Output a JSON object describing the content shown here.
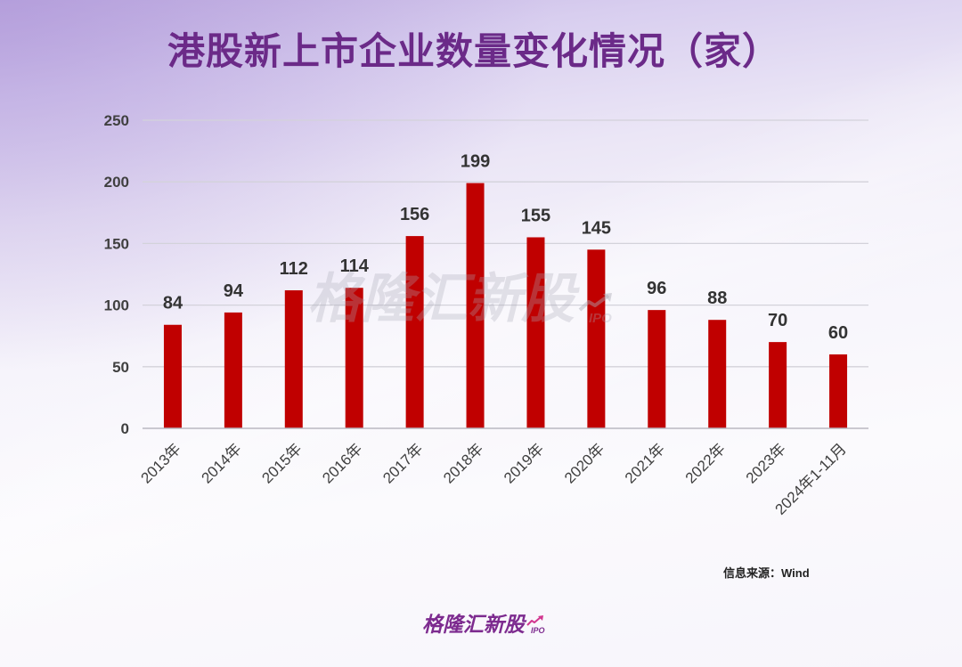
{
  "source": "信息来源：Wind",
  "brand": {
    "name": "格隆汇新股",
    "tag": "IPO"
  },
  "colors": {
    "title": "#6b2a88",
    "bar": "#c00000",
    "grid": "#d3d2da",
    "axis": "#b9b8c2",
    "brand": "#7d2b8f",
    "brand_arrow": "#d2368f",
    "label": "#333333"
  },
  "icons": {
    "trend_arrow": "trend-arrow-icon"
  },
  "chart_data": {
    "type": "bar",
    "title": "港股新上市企业数量变化情况（家）",
    "categories": [
      "2013年",
      "2014年",
      "2015年",
      "2016年",
      "2017年",
      "2018年",
      "2019年",
      "2020年",
      "2021年",
      "2022年",
      "2023年",
      "2024年1-11月"
    ],
    "values": [
      84,
      94,
      112,
      114,
      156,
      199,
      155,
      145,
      96,
      88,
      70,
      60
    ],
    "ylim": [
      0,
      250
    ],
    "yticks": [
      0,
      50,
      100,
      150,
      200,
      250
    ],
    "grid": true,
    "legend": false,
    "data_labels": true
  }
}
